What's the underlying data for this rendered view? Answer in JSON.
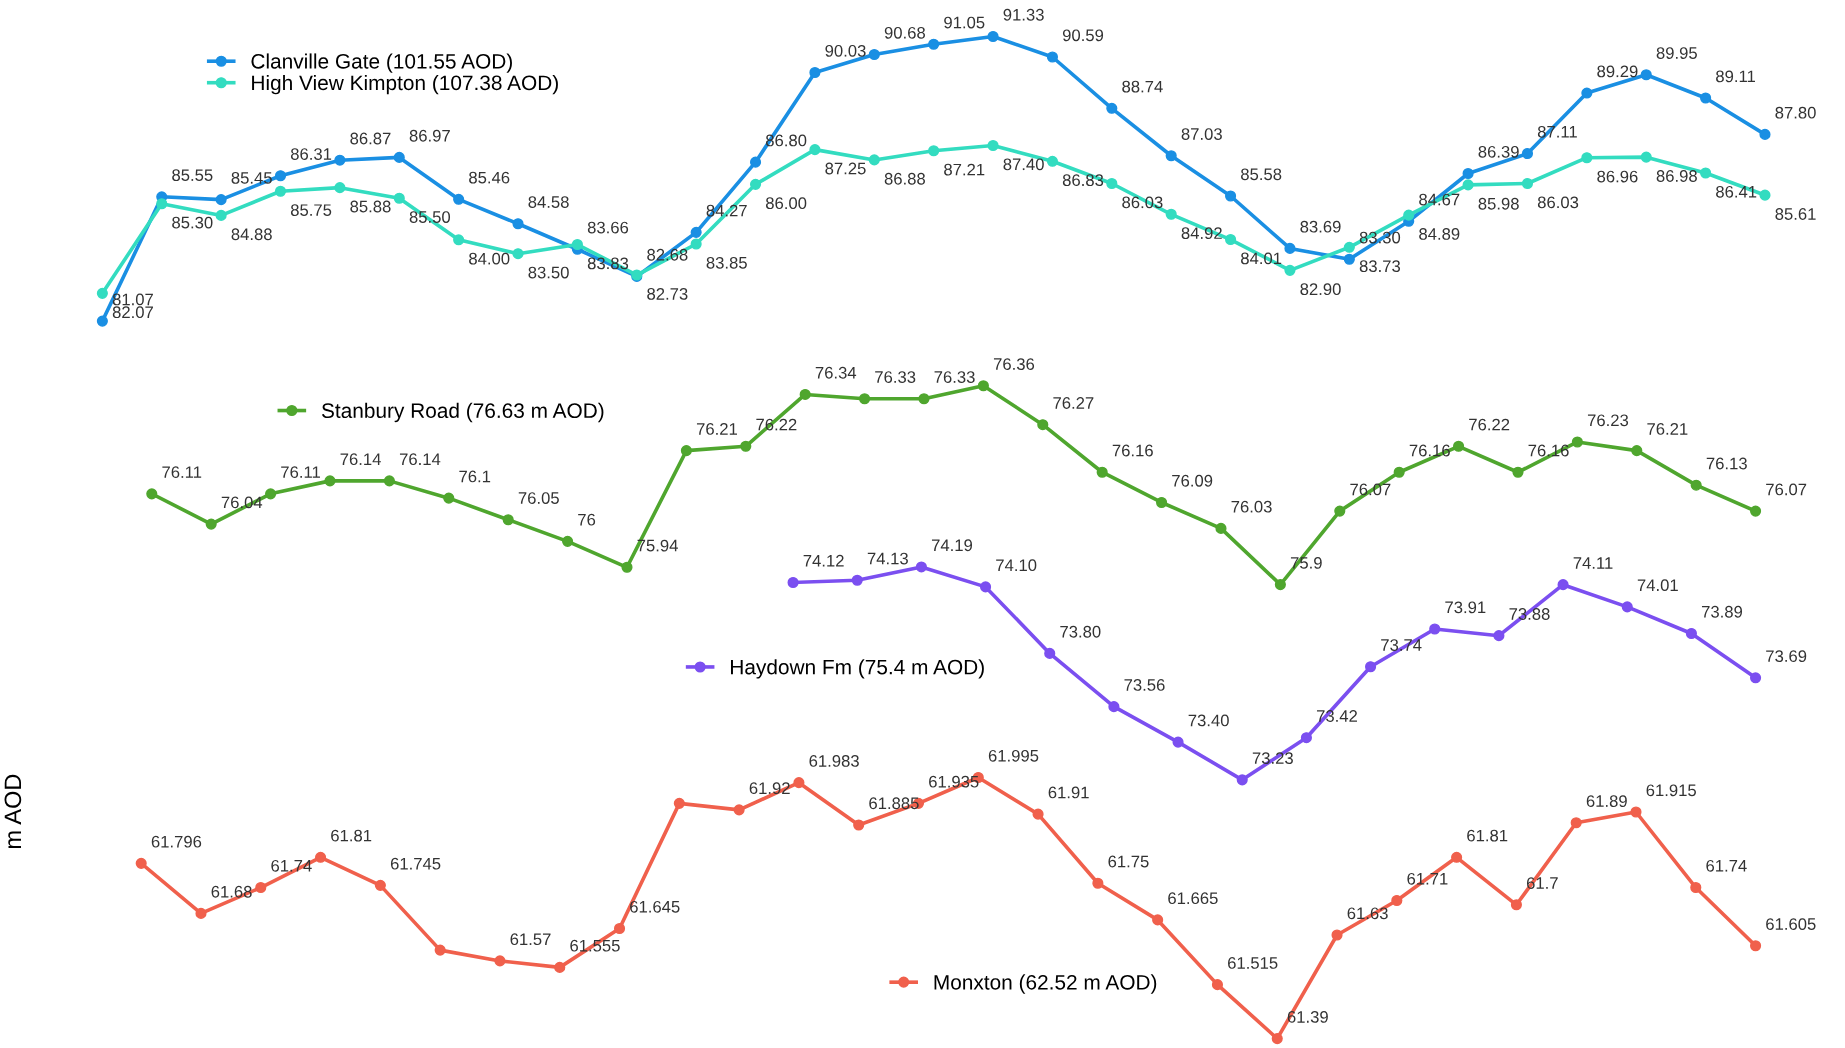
{
  "chart_data": [
    {
      "type": "line",
      "tick_labels": false,
      "legend": "top left",
      "marker": "circle",
      "line_style": "solid",
      "categories": [
        null,
        null,
        null,
        null,
        null,
        null,
        null,
        null,
        null,
        null,
        null,
        null,
        null,
        null,
        null,
        null,
        null,
        null,
        null,
        null,
        null,
        null,
        null,
        null,
        null,
        null,
        null,
        null,
        null
      ],
      "series": [
        {
          "name": "Clanville Gate (101.55 AOD)",
          "color": "#1a8fe3",
          "values": [
            81.07,
            85.55,
            85.45,
            86.31,
            86.87,
            86.97,
            85.46,
            84.58,
            83.66,
            82.68,
            84.27,
            86.8,
            90.03,
            90.68,
            91.05,
            91.33,
            90.59,
            88.74,
            87.03,
            85.58,
            83.69,
            83.3,
            84.67,
            86.39,
            87.11,
            89.29,
            89.95,
            89.11,
            87.8
          ],
          "value_labels": [
            "81.07",
            "85.55",
            "85.45",
            "86.31",
            "86.87",
            "86.97",
            "85.46",
            "84.58",
            "83.66",
            "82.68",
            "84.27",
            "86.80",
            "90.03",
            "90.68",
            "91.05",
            "91.33",
            "90.59",
            "88.74",
            "87.03",
            "85.58",
            "83.69",
            "83.30",
            "84.67",
            "86.39",
            "87.11",
            "89.29",
            "89.95",
            "89.11",
            "87.80"
          ]
        },
        {
          "name": "High View Kimpton (107.38 AOD)",
          "color": "#33dcc0",
          "values": [
            82.07,
            85.3,
            84.88,
            85.75,
            85.88,
            85.5,
            84.0,
            83.5,
            83.83,
            82.73,
            83.85,
            86.0,
            87.25,
            86.88,
            87.21,
            87.4,
            86.83,
            86.03,
            84.92,
            84.01,
            82.9,
            83.73,
            84.89,
            85.98,
            86.03,
            86.96,
            86.98,
            86.41,
            85.61
          ],
          "value_labels": [
            "82.07",
            "85.30",
            "84.88",
            "85.75",
            "85.88",
            "85.50",
            "84.00",
            "83.50",
            "83.83",
            "82.73",
            "83.85",
            "86.00",
            "87.25",
            "86.88",
            "87.21",
            "87.40",
            "86.83",
            "86.03",
            "84.92",
            "84.01",
            "82.90",
            "83.73",
            "84.89",
            "85.98",
            "86.03",
            "86.96",
            "86.98",
            "86.41",
            "85.61"
          ]
        }
      ]
    },
    {
      "type": "line",
      "tick_labels": false,
      "legend": "top left",
      "marker": "circle",
      "line_style": "solid",
      "categories": [
        null,
        null,
        null,
        null,
        null,
        null,
        null,
        null,
        null,
        null,
        null,
        null,
        null,
        null,
        null,
        null,
        null,
        null,
        null,
        null,
        null,
        null,
        null,
        null,
        null,
        null,
        null,
        null
      ],
      "series": [
        {
          "name": "Stanbury Road (76.63 m AOD)",
          "color": "#4fa62e",
          "values": [
            76.11,
            76.04,
            76.11,
            76.14,
            76.14,
            76.1,
            76.05,
            76,
            75.94,
            76.21,
            76.22,
            76.34,
            76.33,
            76.33,
            76.36,
            76.27,
            76.16,
            76.09,
            76.03,
            75.9,
            76.07,
            76.16,
            76.22,
            76.16,
            76.23,
            76.21,
            76.13,
            76.07
          ],
          "value_labels": [
            "76.11",
            "76.04",
            "76.11",
            "76.14",
            "76.14",
            "76.1",
            "76.05",
            "76",
            "75.94",
            "76.21",
            "76.22",
            "76.34",
            "76.33",
            "76.33",
            "76.36",
            "76.27",
            "76.16",
            "76.09",
            "76.03",
            "75.9",
            "76.07",
            "76.16",
            "76.22",
            "76.16",
            "76.23",
            "76.21",
            "76.13",
            "76.07"
          ]
        }
      ]
    },
    {
      "type": "line",
      "tick_labels": false,
      "legend": "left",
      "marker": "circle",
      "line_style": "solid",
      "categories": [
        null,
        null,
        null,
        null,
        null,
        null,
        null,
        null,
        null,
        null,
        null,
        null,
        null,
        null,
        null,
        null
      ],
      "series": [
        {
          "name": "Haydown Fm (75.4 m AOD)",
          "color": "#7b4ff0",
          "values": [
            74.12,
            74.13,
            74.19,
            74.1,
            73.8,
            73.56,
            73.4,
            73.23,
            73.42,
            73.74,
            73.91,
            73.88,
            74.11,
            74.01,
            73.89,
            73.69
          ],
          "value_labels": [
            "74.12",
            "74.13",
            "74.19",
            "74.10",
            "73.80",
            "73.56",
            "73.40",
            "73.23",
            "73.42",
            "73.74",
            "73.91",
            "73.88",
            "74.11",
            "74.01",
            "73.89",
            "73.69"
          ]
        }
      ]
    },
    {
      "type": "line",
      "ylabel": "m AOD",
      "tick_labels": false,
      "legend": "bottom",
      "marker": "circle",
      "line_style": "solid",
      "categories": [
        null,
        null,
        null,
        null,
        null,
        null,
        null,
        null,
        null,
        null,
        null,
        null,
        null,
        null,
        null,
        null,
        null,
        null,
        null,
        null,
        null,
        null,
        null,
        null,
        null,
        null,
        null,
        null
      ],
      "series": [
        {
          "name": "Monxton (62.52 m AOD)",
          "color": "#f0604c",
          "values": [
            61.796,
            61.68,
            61.74,
            61.81,
            61.745,
            61.595,
            61.57,
            61.555,
            61.645,
            61.935,
            61.92,
            61.983,
            61.885,
            61.935,
            61.995,
            61.91,
            61.75,
            61.665,
            61.515,
            61.39,
            61.63,
            61.71,
            61.81,
            61.7,
            61.89,
            61.915,
            61.74,
            61.605
          ],
          "value_labels": [
            "61.796",
            "61.68",
            "61.74",
            "61.81",
            "61.745",
            null,
            "61.57",
            "61.555",
            "61.645",
            null,
            "61.92",
            "61.983",
            "61.885",
            "61.935",
            "61.995",
            "61.91",
            "61.75",
            "61.665",
            "61.515",
            "61.39",
            "61.63",
            "61.71",
            "61.81",
            "61.7",
            "61.89",
            "61.915",
            "61.74",
            "61.605"
          ]
        }
      ]
    }
  ]
}
